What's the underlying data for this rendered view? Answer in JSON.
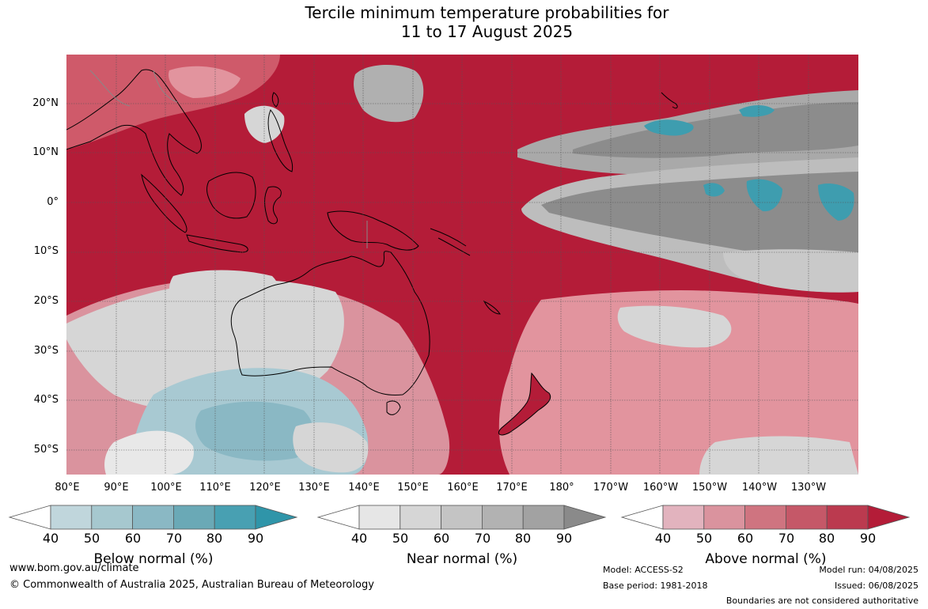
{
  "title": {
    "line1": "Tercile minimum temperature probabilities for",
    "line2": "11 to 17 August 2025"
  },
  "map": {
    "type": "probability map",
    "lat_labels": [
      "20°N",
      "10°N",
      "0°",
      "10°S",
      "20°S",
      "30°S",
      "40°S",
      "50°S"
    ],
    "lon_labels": [
      "80°E",
      "90°E",
      "100°E",
      "110°E",
      "120°E",
      "130°E",
      "140°E",
      "150°E",
      "160°E",
      "170°E",
      "180°",
      "170°W",
      "160°W",
      "150°W",
      "140°W",
      "130°W"
    ],
    "lat_range": [
      -55,
      30
    ],
    "lon_range": [
      80,
      240
    ],
    "colors": {
      "above_90": "#b41c38",
      "above_70": "#cf5a6a",
      "above_50": "#e2949e",
      "near_normal": "#d6d6d6",
      "near_dark": "#8c8c8c",
      "below_60": "#a8c9d2",
      "below_80": "#3e9daf",
      "land_outline": "#000000",
      "border": "#888888",
      "grid": "#555555"
    }
  },
  "legends": [
    {
      "title": "Below normal (%)",
      "ticks": [
        "40",
        "50",
        "60",
        "70",
        "80",
        "90"
      ],
      "colors": [
        "#ffffff",
        "#c0d6dc",
        "#a6c8cf",
        "#8ab8c4",
        "#6aa9b6",
        "#48a0b2",
        "#2f95a9"
      ]
    },
    {
      "title": "Near normal (%)",
      "ticks": [
        "40",
        "50",
        "60",
        "70",
        "80",
        "90"
      ],
      "colors": [
        "#ffffff",
        "#e6e6e6",
        "#d6d6d6",
        "#c4c4c4",
        "#b2b2b2",
        "#a2a2a2",
        "#8a8a8a"
      ]
    },
    {
      "title": "Above normal (%)",
      "ticks": [
        "40",
        "50",
        "60",
        "70",
        "80",
        "90"
      ],
      "colors": [
        "#ffffff",
        "#e2b3be",
        "#da939e",
        "#cf7480",
        "#c55868",
        "#bb3a4f",
        "#b41c38"
      ]
    }
  ],
  "footer": {
    "website": "www.bom.gov.au/climate",
    "copyright": "© Commonwealth of Australia 2025, Australian Bureau of Meteorology",
    "model": "Model: ACCESS-S2",
    "base_period": "Base period: 1981-2018",
    "model_run": "Model run: 04/08/2025",
    "issued": "Issued: 06/08/2025",
    "disclaimer": "Boundaries are not considered authoritative"
  }
}
